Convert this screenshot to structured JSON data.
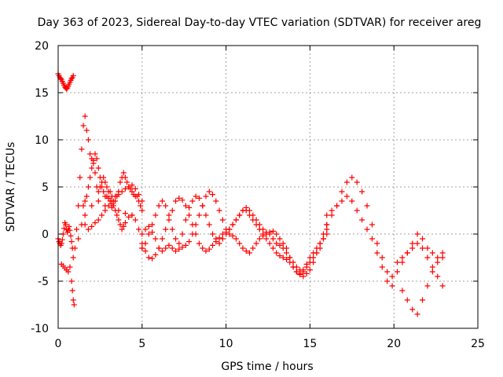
{
  "chart_data": {
    "type": "scatter",
    "title": "Day 363 of 2023, Sidereal Day-to-day VTEC variation (SDTVAR) for receiver areg",
    "xlabel": "GPS time / hours",
    "ylabel": "SDTVAR / TECUs",
    "xlim": [
      0,
      25
    ],
    "ylim": [
      -10,
      20
    ],
    "xticks": [
      0,
      5,
      10,
      15,
      20,
      25
    ],
    "yticks": [
      -10,
      -5,
      0,
      5,
      10,
      15,
      20
    ],
    "xtick_labels": [
      "0",
      "5",
      "10",
      "15",
      "20",
      "25"
    ],
    "ytick_labels": [
      "-10",
      "-5",
      "0",
      "5",
      "10",
      "15",
      "20"
    ],
    "grid": true,
    "marker": "plus",
    "color": "#ff0000",
    "series": [
      {
        "name": "SDTVAR",
        "x": [
          0.0,
          0.05,
          0.1,
          0.15,
          0.2,
          0.25,
          0.3,
          0.35,
          0.4,
          0.45,
          0.5,
          0.55,
          0.6,
          0.65,
          0.7,
          0.75,
          0.8,
          0.85,
          0.9,
          0.0,
          0.05,
          0.1,
          0.15,
          0.2,
          0.25,
          0.3,
          0.35,
          0.4,
          0.45,
          0.5,
          0.55,
          0.6,
          0.65,
          0.7,
          0.75,
          0.8,
          0.85,
          0.9,
          0.2,
          0.3,
          0.4,
          0.5,
          0.6,
          0.7,
          0.8,
          0.85,
          0.9,
          0.95,
          1.0,
          1.1,
          1.2,
          1.3,
          1.4,
          1.5,
          1.6,
          1.7,
          1.8,
          1.9,
          2.0,
          2.1,
          2.2,
          2.3,
          2.4,
          2.5,
          2.6,
          2.7,
          2.8,
          2.9,
          3.0,
          3.1,
          3.2,
          3.3,
          3.4,
          3.5,
          3.6,
          3.7,
          3.8,
          3.9,
          4.0,
          4.1,
          4.2,
          4.3,
          4.4,
          4.5,
          4.6,
          4.7,
          4.8,
          4.9,
          5.0,
          1.5,
          1.6,
          1.7,
          1.8,
          1.9,
          2.0,
          2.1,
          2.2,
          2.3,
          2.4,
          2.5,
          2.6,
          2.7,
          2.8,
          2.9,
          3.0,
          3.1,
          3.2,
          3.3,
          3.4,
          3.5,
          3.6,
          3.7,
          3.8,
          3.9,
          4.0,
          4.2,
          4.4,
          4.6,
          4.8,
          5.0,
          1.6,
          1.8,
          2.0,
          2.2,
          2.4,
          2.6,
          2.8,
          3.0,
          3.2,
          3.4,
          3.6,
          3.8,
          4.0,
          4.2,
          4.4,
          4.6,
          4.8,
          5.0,
          5.0,
          5.2,
          5.4,
          5.6,
          5.8,
          6.0,
          6.2,
          6.4,
          6.6,
          6.8,
          7.0,
          7.2,
          7.4,
          7.6,
          7.8,
          8.0,
          8.2,
          8.4,
          8.6,
          8.8,
          9.0,
          9.2,
          9.4,
          9.6,
          9.8,
          10.0,
          10.2,
          10.4,
          10.6,
          10.8,
          11.0,
          11.2,
          11.4,
          11.6,
          11.8,
          12.0,
          12.2,
          12.4,
          12.6,
          12.8,
          13.0,
          13.2,
          13.4,
          13.6,
          13.8,
          14.0,
          14.2,
          14.4,
          14.6,
          14.8,
          15.0,
          15.2,
          15.4,
          15.6,
          15.8,
          16.0,
          5.0,
          5.2,
          5.4,
          5.6,
          5.8,
          6.0,
          6.2,
          6.4,
          6.6,
          6.8,
          7.0,
          7.2,
          7.4,
          7.6,
          7.8,
          8.0,
          8.2,
          8.4,
          8.6,
          8.8,
          9.0,
          9.2,
          9.4,
          9.6,
          9.8,
          10.0,
          10.2,
          10.4,
          10.6,
          10.8,
          11.0,
          11.2,
          11.4,
          11.6,
          11.8,
          12.0,
          12.2,
          12.4,
          12.6,
          12.8,
          13.0,
          13.2,
          13.4,
          13.6,
          13.8,
          14.0,
          14.2,
          14.4,
          14.6,
          14.8,
          15.0,
          15.2,
          15.4,
          15.6,
          15.8,
          16.0,
          5.0,
          5.2,
          5.4,
          5.6,
          5.8,
          6.0,
          6.2,
          6.4,
          6.6,
          6.8,
          7.0,
          7.2,
          7.4,
          7.6,
          7.8,
          8.0,
          8.2,
          8.4,
          8.6,
          8.8,
          9.0,
          9.2,
          9.4,
          9.6,
          9.8,
          10.0,
          10.2,
          10.4,
          10.6,
          10.8,
          11.0,
          11.2,
          11.4,
          11.6,
          11.8,
          12.0,
          12.2,
          12.4,
          12.6,
          12.8,
          13.0,
          13.2,
          13.4,
          13.6,
          13.8,
          14.0,
          14.2,
          14.4,
          14.6,
          14.8,
          15.0,
          15.2,
          15.4,
          15.6,
          15.8,
          16.0,
          16.0,
          16.3,
          16.6,
          16.9,
          17.2,
          17.5,
          17.8,
          18.1,
          18.4,
          18.7,
          19.0,
          19.3,
          19.6,
          19.9,
          20.2,
          20.5,
          20.8,
          21.1,
          21.4,
          21.7,
          22.0,
          22.3,
          22.6,
          22.9,
          16.0,
          16.3,
          16.6,
          16.9,
          17.2,
          17.5,
          17.8,
          18.1,
          18.4,
          18.7,
          19.0,
          19.3,
          19.6,
          19.9,
          20.2,
          20.5,
          20.8,
          21.1,
          21.4,
          21.7,
          22.0,
          22.3,
          22.6,
          22.9,
          20.5,
          20.8,
          21.1,
          21.4,
          21.7,
          22.0,
          22.3,
          22.6,
          22.9,
          1.2,
          1.4,
          1.6,
          2.0,
          2.4,
          2.8,
          3.2,
          3.6,
          4.0,
          4.4
        ],
        "y": [
          17.0,
          16.8,
          16.6,
          16.5,
          16.4,
          16.2,
          16.0,
          15.8,
          15.6,
          15.5,
          15.4,
          15.5,
          15.7,
          15.9,
          16.1,
          16.3,
          16.5,
          16.6,
          16.8,
          -0.5,
          -0.8,
          -1.0,
          -1.2,
          -1.0,
          -0.6,
          0.0,
          0.6,
          1.2,
          1.0,
          0.5,
          0.2,
          0.4,
          0.8,
          0.4,
          -0.2,
          -0.8,
          -1.5,
          -2.5,
          -3.2,
          -3.4,
          -3.6,
          -3.8,
          -4.0,
          -3.5,
          -5.0,
          -6.0,
          -7.0,
          -7.5,
          -1.5,
          0.5,
          3.0,
          6.0,
          9.0,
          11.5,
          12.5,
          11.0,
          10.0,
          8.5,
          8.0,
          7.5,
          6.5,
          5.0,
          4.5,
          5.0,
          5.5,
          6.0,
          5.5,
          5.0,
          4.5,
          4.5,
          4.0,
          3.5,
          3.5,
          4.0,
          4.5,
          5.5,
          6.0,
          6.5,
          6.0,
          5.5,
          5.0,
          4.8,
          4.5,
          4.2,
          4.0,
          4.0,
          3.5,
          3.0,
          2.5,
          3.0,
          3.5,
          4.0,
          5.0,
          6.0,
          7.0,
          7.8,
          8.5,
          8.0,
          7.0,
          6.0,
          5.0,
          4.5,
          4.0,
          4.0,
          3.8,
          3.5,
          3.2,
          3.0,
          2.5,
          2.0,
          1.5,
          1.0,
          0.5,
          0.8,
          1.2,
          1.8,
          2.0,
          1.5,
          0.5,
          -1.5,
          1.0,
          0.5,
          0.8,
          1.2,
          1.5,
          2.0,
          2.5,
          3.0,
          3.5,
          4.0,
          4.2,
          4.5,
          4.8,
          5.0,
          5.2,
          4.8,
          4.2,
          3.5,
          -1.0,
          -1.8,
          -2.5,
          -2.6,
          -2.2,
          -1.5,
          -0.5,
          0.5,
          1.5,
          2.5,
          3.5,
          3.8,
          3.6,
          3.0,
          2.0,
          1.0,
          0.0,
          -1.0,
          -1.5,
          -1.8,
          -1.6,
          -1.2,
          -0.8,
          -0.4,
          0.0,
          0.2,
          0.5,
          1.0,
          1.5,
          2.0,
          2.5,
          2.5,
          2.0,
          1.5,
          1.0,
          0.5,
          0.0,
          -0.5,
          -1.0,
          -1.5,
          -2.0,
          -2.3,
          -2.5,
          -2.7,
          -3.0,
          -3.5,
          -4.0,
          -4.3,
          -4.5,
          -4.2,
          -3.8,
          -3.0,
          -2.0,
          -1.0,
          0.0,
          0.5,
          0.0,
          0.5,
          0.8,
          0.2,
          -0.5,
          -1.5,
          -1.8,
          -1.5,
          -1.2,
          -1.5,
          -1.8,
          -1.6,
          -1.4,
          -1.2,
          -0.8,
          0.0,
          1.0,
          2.0,
          3.0,
          4.0,
          4.5,
          4.2,
          3.5,
          2.5,
          1.5,
          0.5,
          0.0,
          -0.2,
          -0.5,
          -1.0,
          -1.5,
          -1.8,
          -2.0,
          -1.5,
          -1.0,
          -0.5,
          -0.2,
          0.0,
          0.2,
          0.3,
          0.0,
          -0.5,
          -1.0,
          -1.5,
          -2.5,
          -3.5,
          -4.0,
          -4.2,
          -3.8,
          -3.2,
          -2.5,
          -2.0,
          -1.5,
          -1.0,
          -0.5,
          0.0,
          -1.5,
          -1.0,
          0.0,
          1.0,
          2.0,
          3.0,
          3.5,
          3.0,
          2.0,
          0.5,
          -0.5,
          -1.0,
          0.0,
          1.5,
          2.8,
          3.5,
          4.0,
          3.8,
          3.0,
          2.0,
          1.0,
          0.0,
          -0.5,
          -1.0,
          -0.5,
          0.0,
          0.5,
          1.0,
          1.5,
          2.0,
          2.5,
          2.8,
          2.5,
          2.0,
          1.5,
          1.0,
          0.5,
          0.2,
          0.0,
          -0.5,
          -1.0,
          -1.2,
          -1.5,
          -2.0,
          -2.5,
          -3.0,
          -3.5,
          -3.8,
          -4.0,
          -3.5,
          -3.0,
          -2.5,
          -2.0,
          -1.5,
          -0.5,
          1.0,
          1.0,
          2.0,
          3.0,
          4.5,
          5.5,
          6.0,
          5.5,
          4.5,
          3.0,
          1.0,
          -1.0,
          -2.5,
          -4.0,
          -5.5,
          -4.0,
          -3.0,
          -2.0,
          -1.0,
          0.0,
          -0.5,
          -1.5,
          -2.0,
          -2.5,
          -2.0,
          2.0,
          2.5,
          3.0,
          3.5,
          4.0,
          3.5,
          2.5,
          1.5,
          0.5,
          -0.5,
          -2.0,
          -3.5,
          -5.0,
          -4.5,
          -3.0,
          -2.5,
          -2.0,
          -1.5,
          -1.0,
          -1.5,
          -2.5,
          -3.5,
          -4.5,
          -5.5,
          -6.0,
          -7.0,
          -8.0,
          -8.5,
          -7.0,
          -5.5,
          -4.0,
          -3.0,
          -2.5,
          -0.5,
          1.0,
          2.0,
          3.0,
          3.5,
          3.0,
          2.8,
          2.5,
          2.2,
          2.0
        ]
      }
    ]
  }
}
